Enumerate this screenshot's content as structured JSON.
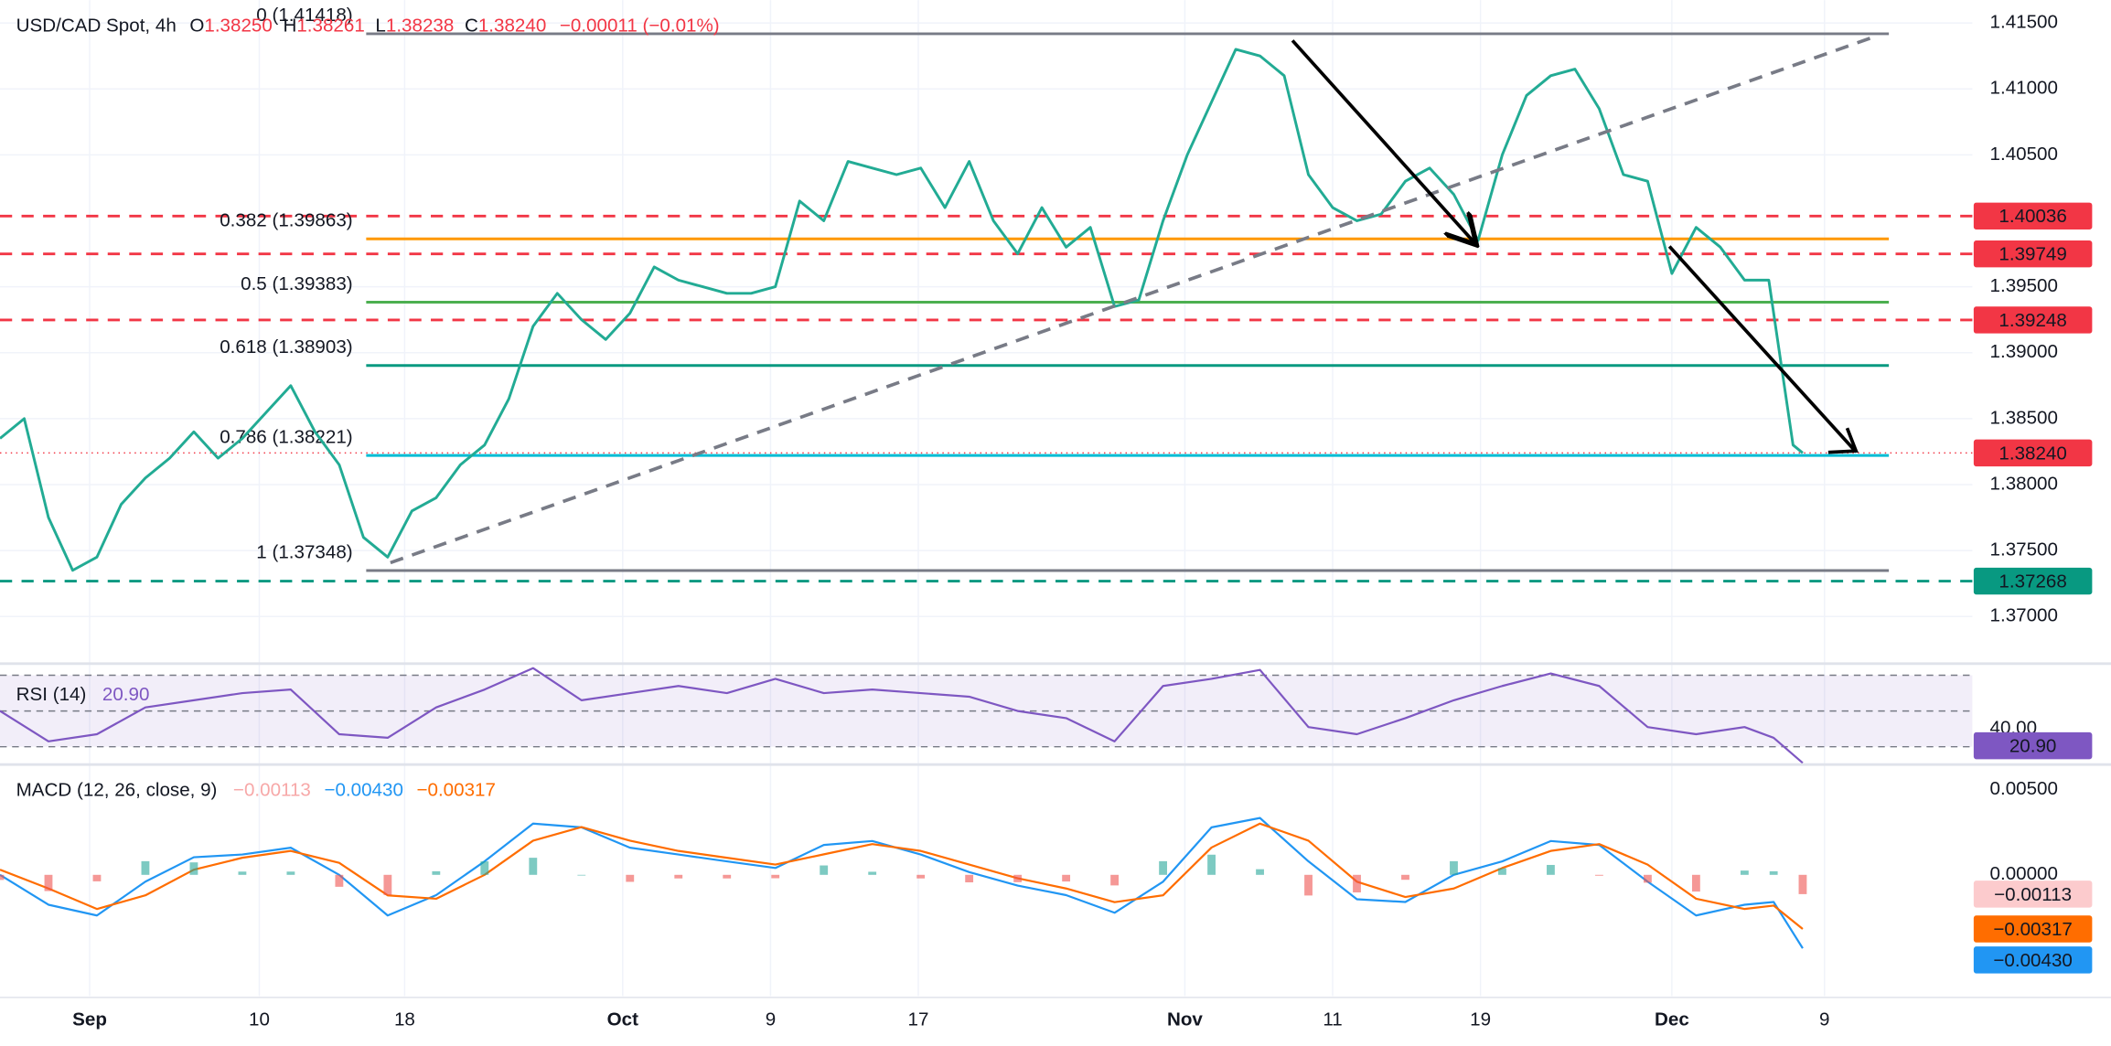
{
  "header": {
    "symbol": "USD/CAD Spot, 4h",
    "ohlc": [
      {
        "key": "O",
        "value": "1.38250"
      },
      {
        "key": "H",
        "value": "1.38261"
      },
      {
        "key": "L",
        "value": "1.38238"
      },
      {
        "key": "C",
        "value": "1.38240"
      }
    ],
    "change": "−0.00011 (−0.01%)"
  },
  "chart_data": [
    {
      "type": "line",
      "color": "#22ab94",
      "x": [
        0,
        1,
        2,
        3,
        4,
        5,
        6,
        7,
        8,
        9,
        10,
        11,
        12,
        13,
        14,
        15,
        16,
        17,
        18,
        19,
        20,
        21,
        22,
        23,
        24,
        25,
        26,
        27,
        28,
        29,
        30,
        31,
        32,
        33,
        34,
        35,
        36,
        37,
        38,
        39,
        40,
        41,
        42,
        43,
        44,
        45,
        46,
        47,
        48,
        49,
        50,
        51,
        52,
        53,
        54,
        55,
        56,
        57,
        58,
        59,
        60,
        61,
        62,
        63,
        64,
        65,
        66,
        67,
        68,
        69,
        70,
        71,
        72,
        73,
        74,
        74.4
      ],
      "values": [
        1.3835,
        1.385,
        1.3775,
        1.3735,
        1.3745,
        1.3785,
        1.3805,
        1.382,
        1.384,
        1.382,
        1.3835,
        1.3855,
        1.3875,
        1.384,
        1.3815,
        1.376,
        1.3745,
        1.378,
        1.379,
        1.3815,
        1.383,
        1.3865,
        1.392,
        1.3945,
        1.3925,
        1.391,
        1.393,
        1.3965,
        1.3955,
        1.395,
        1.3945,
        1.3945,
        1.395,
        1.4015,
        1.4,
        1.4045,
        1.404,
        1.4035,
        1.404,
        1.401,
        1.4045,
        1.4,
        1.3975,
        1.401,
        1.398,
        1.3995,
        1.3935,
        1.394,
        1.4,
        1.405,
        1.409,
        1.413,
        1.4125,
        1.411,
        1.4035,
        1.401,
        1.4,
        1.4005,
        1.403,
        1.404,
        1.402,
        1.3985,
        1.405,
        1.4095,
        1.411,
        1.4115,
        1.4085,
        1.4035,
        1.403,
        1.396,
        1.3995,
        1.398,
        1.3955,
        1.3955,
        1.383,
        1.3824
      ],
      "xlim": [
        0,
        81.4
      ],
      "xticks": [
        {
          "value": 3.7,
          "label": "Sep"
        },
        {
          "value": 10.7,
          "label": "10"
        },
        {
          "value": 16.7,
          "label": "18"
        },
        {
          "value": 25.7,
          "label": "Oct"
        },
        {
          "value": 31.8,
          "label": "9"
        },
        {
          "value": 37.9,
          "label": "17"
        },
        {
          "value": 48.9,
          "label": "Nov"
        },
        {
          "value": 55,
          "label": "11"
        },
        {
          "value": 61.1,
          "label": "19"
        },
        {
          "value": 69,
          "label": "Dec"
        },
        {
          "value": 75.3,
          "label": "9"
        }
      ],
      "ylim": [
        1.36673,
        1.41673
      ],
      "yticks": [
        {
          "value": 1.415,
          "label": "1.41500"
        },
        {
          "value": 1.41,
          "label": "1.41000"
        },
        {
          "value": 1.405,
          "label": "1.40500"
        },
        {
          "value": 1.395,
          "label": "1.39500"
        },
        {
          "value": 1.39,
          "label": "1.39000"
        },
        {
          "value": 1.385,
          "label": "1.38500"
        },
        {
          "value": 1.38,
          "label": "1.38000"
        },
        {
          "value": 1.375,
          "label": "1.37500"
        },
        {
          "value": 1.37,
          "label": "1.37000"
        }
      ],
      "grid": true,
      "fib_levels": [
        {
          "label": "0 (1.41418)",
          "value": 1.41418,
          "color": "#787b86"
        },
        {
          "label": "0.382 (1.39863)",
          "value": 1.39863,
          "color": "#ff9800"
        },
        {
          "label": "0.5 (1.39383)",
          "value": 1.39383,
          "color": "#4caf50"
        },
        {
          "label": "0.618 (1.38903)",
          "value": 1.38903,
          "color": "#089981"
        },
        {
          "label": "0.786 (1.38221)",
          "value": 1.38221,
          "color": "#00bcd4"
        },
        {
          "label": "1 (1.37348)",
          "value": 1.37348,
          "color": "#787b86"
        }
      ],
      "h_levels": [
        {
          "value": 1.40036,
          "color": "#f23645"
        },
        {
          "value": 1.39749,
          "color": "#f23645"
        },
        {
          "value": 1.39248,
          "color": "#f23645"
        },
        {
          "value": 1.37268,
          "color": "#089981"
        }
      ],
      "last_price": {
        "value": 1.3824,
        "label": "1.38240",
        "color": "#f23645"
      }
    },
    {
      "type": "line",
      "title": "RSI (14)",
      "color": "#7e57c2",
      "x": [
        0,
        2,
        4,
        6,
        8,
        10,
        12,
        14,
        16,
        18,
        20,
        22,
        24,
        26,
        28,
        30,
        32,
        34,
        36,
        38,
        40,
        42,
        44,
        46,
        48,
        50,
        52,
        54,
        56,
        58,
        60,
        62,
        64,
        66,
        68,
        70,
        72,
        73.2,
        74.4
      ],
      "values": [
        50,
        33,
        37,
        52,
        56,
        60,
        62,
        37,
        35,
        52,
        62,
        74,
        56,
        60,
        64,
        60,
        68,
        60,
        62,
        60,
        58,
        50,
        46,
        33,
        64,
        68,
        73,
        41,
        37,
        46,
        56,
        64,
        71,
        64,
        41,
        37,
        41,
        35,
        20.9
      ],
      "last_label": "20.90",
      "ylim": [
        20,
        75
      ],
      "yticks": [
        {
          "value": 40,
          "label": "40.00"
        }
      ],
      "levels": [
        70,
        50,
        30
      ]
    },
    {
      "type": "line",
      "title": "MACD (12, 26, close, 9)",
      "x": [
        0,
        2,
        4,
        6,
        8,
        10,
        12,
        14,
        16,
        18,
        20,
        22,
        24,
        26,
        28,
        30,
        32,
        34,
        36,
        38,
        40,
        42,
        44,
        46,
        48,
        50,
        52,
        54,
        56,
        58,
        60,
        62,
        64,
        66,
        68,
        70,
        72,
        73.2,
        74.4
      ],
      "ylim": [
        -0.0071,
        0.0063
      ],
      "yticks": [
        {
          "value": 0.005,
          "label": "0.00500"
        },
        {
          "value": 0,
          "label": "0.00000"
        }
      ],
      "series": [
        {
          "color": "#2196f3",
          "last_label": "−0.00430",
          "values": [
            0,
            -0.00175,
            -0.00238,
            -0.0004,
            0.00103,
            0.00119,
            0.00159,
            0,
            -0.00238,
            -0.00119,
            0.00079,
            0.003,
            0.00278,
            0.00159,
            0.00119,
            0.00079,
            0.0004,
            0.00175,
            0.00198,
            0.00119,
            0.00016,
            -0.00063,
            -0.00119,
            -0.00222,
            -0.0004,
            0.00278,
            0.00333,
            0.00079,
            -0.00143,
            -0.00159,
            0,
            0.00079,
            0.00198,
            0.00175,
            -0.0004,
            -0.00238,
            -0.00175,
            -0.00159,
            -0.0043
          ]
        },
        {
          "color": "#ff6d00",
          "last_label": "−0.00317",
          "values": [
            0.0003,
            -0.0008,
            -0.002,
            -0.0012,
            0.0003,
            0.001,
            0.0014,
            0.0007,
            -0.0012,
            -0.0014,
            0,
            0.002,
            0.0028,
            0.002,
            0.0014,
            0.001,
            0.0006,
            0.0012,
            0.0018,
            0.0014,
            0.0006,
            -0.0002,
            -0.0008,
            -0.0016,
            -0.0012,
            0.0016,
            0.003,
            0.002,
            -0.0004,
            -0.0013,
            -0.0008,
            0.0004,
            0.0014,
            0.0018,
            0.0006,
            -0.0014,
            -0.002,
            -0.0018,
            -0.00317
          ]
        },
        {
          "type": "bar",
          "color": "#26a69a",
          "negative_color": "#ef5350",
          "label_color": "#f7a8a8",
          "tag_color": "#fccbcd",
          "last_label": "−0.00113",
          "values": [
            -0.0003,
            -0.00095,
            -0.00038,
            0.0008,
            0.00073,
            0.00019,
            0.00019,
            -0.0007,
            -0.00118,
            0.00021,
            0.00079,
            0.001,
            0,
            -0.00041,
            -0.00021,
            -0.00021,
            -0.0002,
            0.00055,
            0.00018,
            -0.00021,
            -0.00044,
            -0.00043,
            -0.00039,
            -0.00062,
            0.0008,
            0.00118,
            0.00033,
            -0.00121,
            -0.00103,
            -0.00029,
            0.0008,
            0.00039,
            0.00058,
            -5e-05,
            -0.00046,
            -0.00098,
            0.00025,
            0.00021,
            -0.00113
          ]
        }
      ]
    }
  ]
}
